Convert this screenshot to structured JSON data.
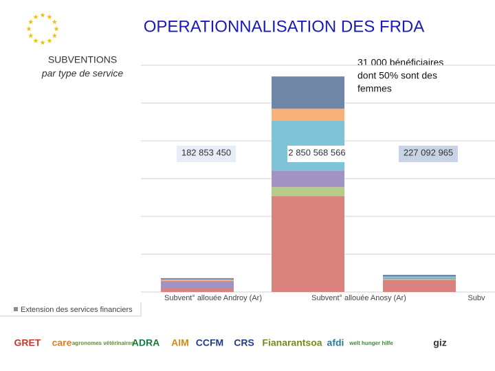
{
  "chart_data": {
    "type": "stacked-bar",
    "title": "OPERATIONNALISATION DES FRDA",
    "subtitle": "SUBVENTIONS",
    "subtitle2": "par type de service",
    "annotation": [
      "31 000 bénéficiaires",
      "dont 50% sont des",
      "femmes"
    ],
    "categories": [
      "Subvent° allouée Androy (Ar)",
      "Subvent° allouée Anosy (Ar)",
      "Subv"
    ],
    "series": [
      {
        "color": "#d9827e",
        "values": [
          45000000,
          1270000000,
          160000000
        ]
      },
      {
        "color": "#b8cc8a",
        "values": [
          0,
          118000000,
          10000000
        ]
      },
      {
        "color": "#a193c4",
        "values": [
          100000000,
          218000000,
          15000000
        ]
      },
      {
        "color": "#7fc4d6",
        "values": [
          0,
          664000000,
          20000000
        ]
      },
      {
        "color": "#f7b07a",
        "values": [
          20000000,
          155000000,
          0
        ]
      },
      {
        "color": "#6f86a6",
        "values": [
          18000000,
          427000000,
          22000000
        ]
      },
      {
        "name": "Extension des services financiers",
        "color": "#8c8c8c",
        "values": [
          0,
          0,
          0
        ]
      }
    ],
    "totals": [
      182853450,
      2850568566,
      227092965
    ],
    "total_labels": [
      "182 853 450",
      "2 850 568 566",
      "227 092 965"
    ],
    "ylim": [
      0,
      3000000000
    ],
    "yticks": [
      0,
      500000000,
      1000000000,
      1500000000,
      2000000000,
      2500000000,
      3000000000
    ],
    "grid": true
  },
  "logos": [
    "GRET",
    "care",
    "agronomes vétérinaires",
    "ADRA",
    "AIM",
    "CCFM",
    "CRS",
    "Fianarantsoa",
    "afdi",
    "welt hunger hilfe",
    "giz"
  ]
}
